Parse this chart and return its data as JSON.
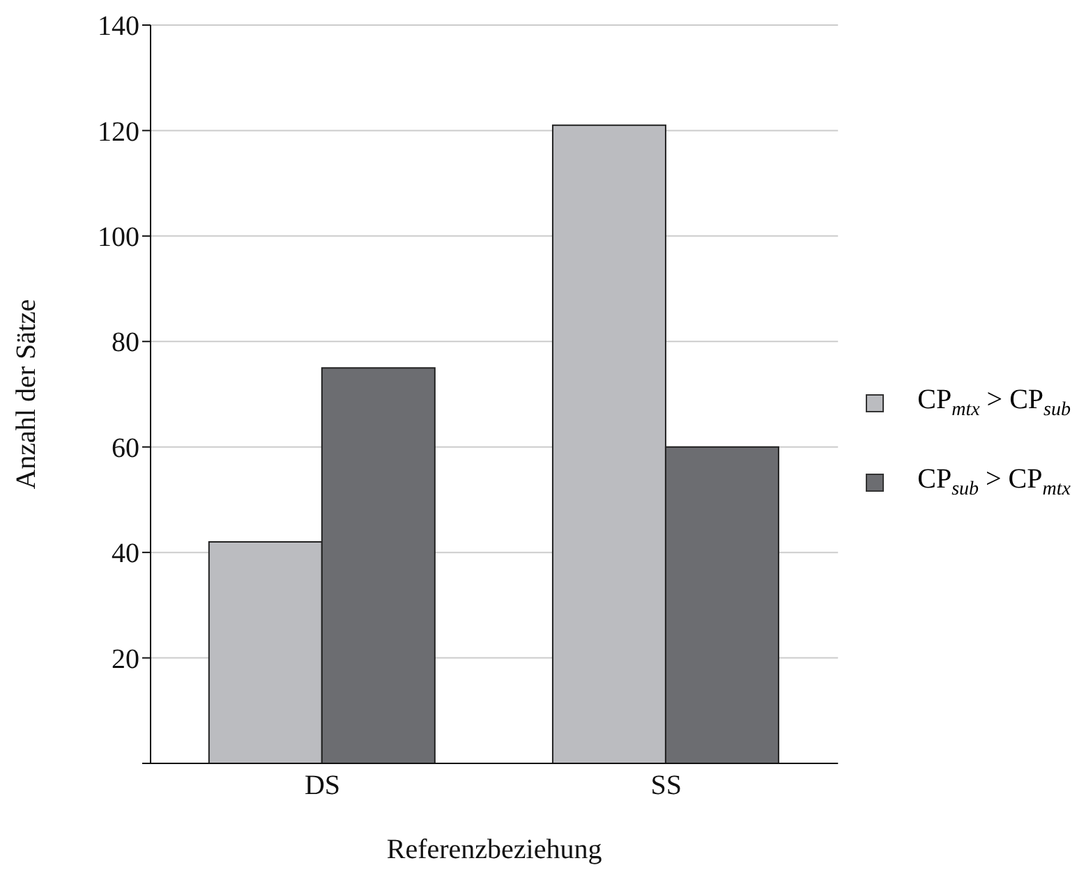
{
  "chart_data": {
    "type": "bar",
    "xlabel": "Referenzbeziehung",
    "ylabel": "Anzahl der Sätze",
    "categories": [
      "DS",
      "SS"
    ],
    "series": [
      {
        "name": "CP$_{mtx}$ > CP$_{sub}$",
        "color": "#bbbcc0",
        "values": [
          42,
          121
        ]
      },
      {
        "name": "CP$_{sub}$ > CP$_{mtx}$",
        "color": "#6c6d71",
        "values": [
          75,
          60
        ]
      }
    ],
    "ylim": [
      0,
      140
    ],
    "yticks": [
      {
        "value": 0,
        "label": null
      },
      20,
      40,
      60,
      80,
      100,
      120,
      140
    ],
    "grid": "y",
    "legend": "right"
  }
}
